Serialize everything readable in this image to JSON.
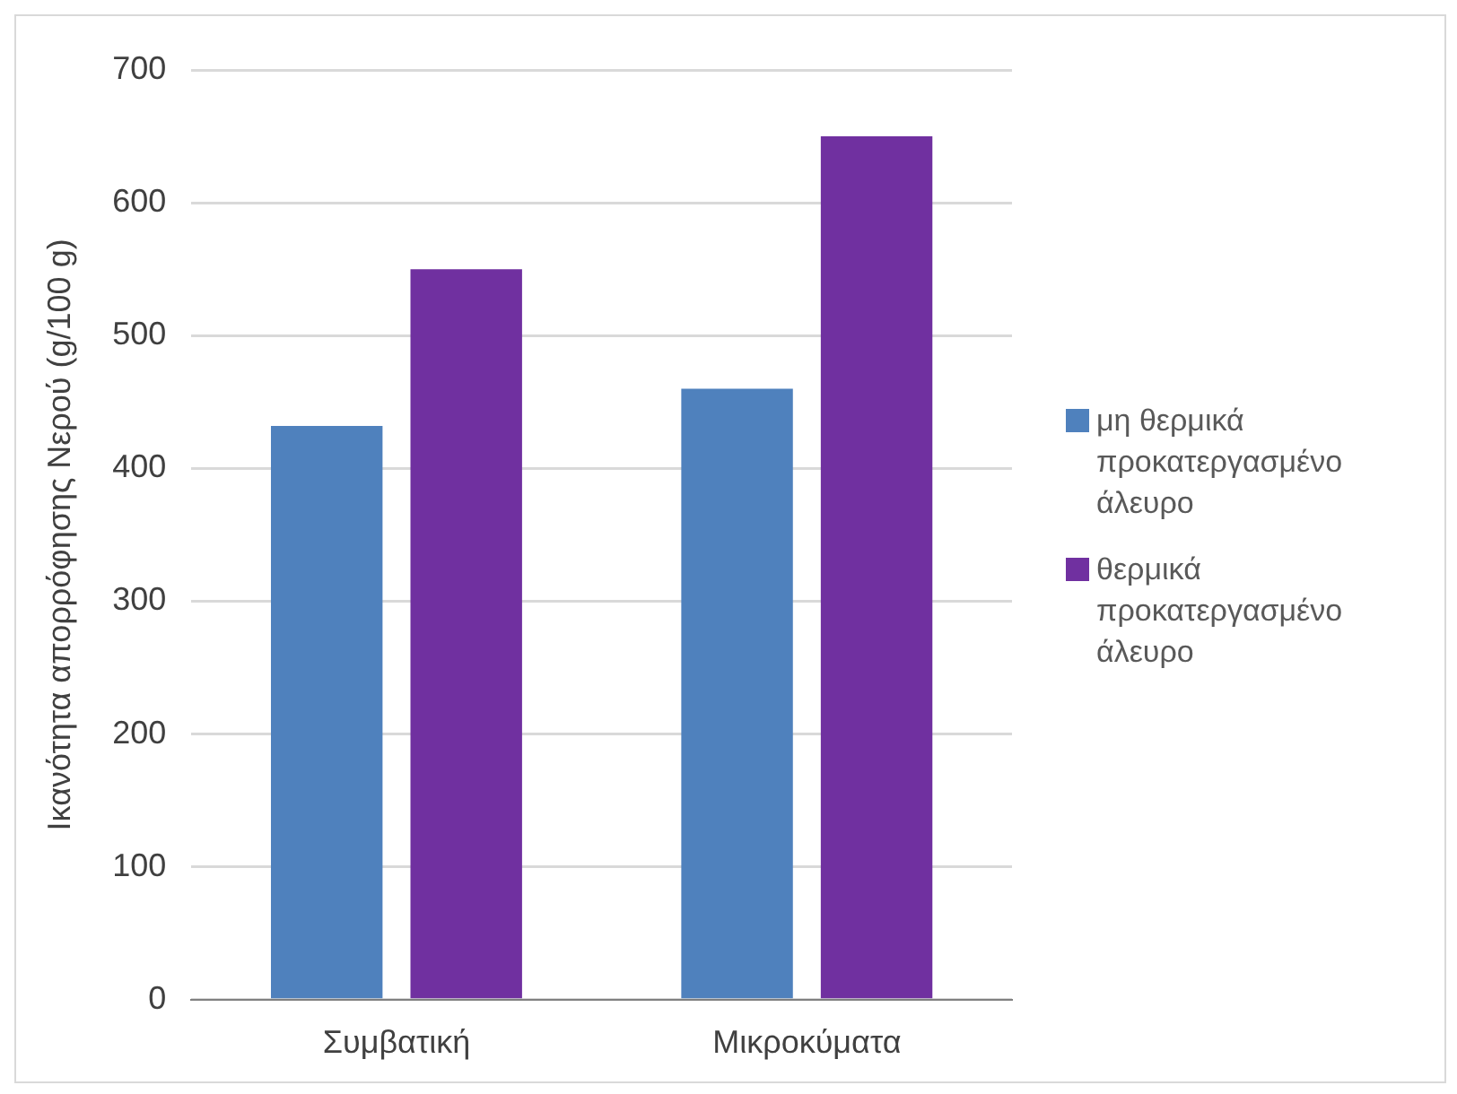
{
  "chart_data": {
    "type": "bar",
    "ylabel": "Ικανότητα απορρόφησης Νερού (g/100 g)",
    "categories": [
      "Συμβατική",
      "Μικροκύματα"
    ],
    "series": [
      {
        "name": "μη θερμικά προκατεργασμένο άλευρο",
        "color": "#4f81bd",
        "values": [
          432,
          460
        ]
      },
      {
        "name": "θερμικά προκατεργασμένο άλευρο",
        "color": "#7030a0",
        "values": [
          550,
          650
        ]
      }
    ],
    "ylim": [
      0,
      700
    ],
    "yticks": [
      0,
      100,
      200,
      300,
      400,
      500,
      600,
      700
    ],
    "grid": "y",
    "legend": "right"
  }
}
